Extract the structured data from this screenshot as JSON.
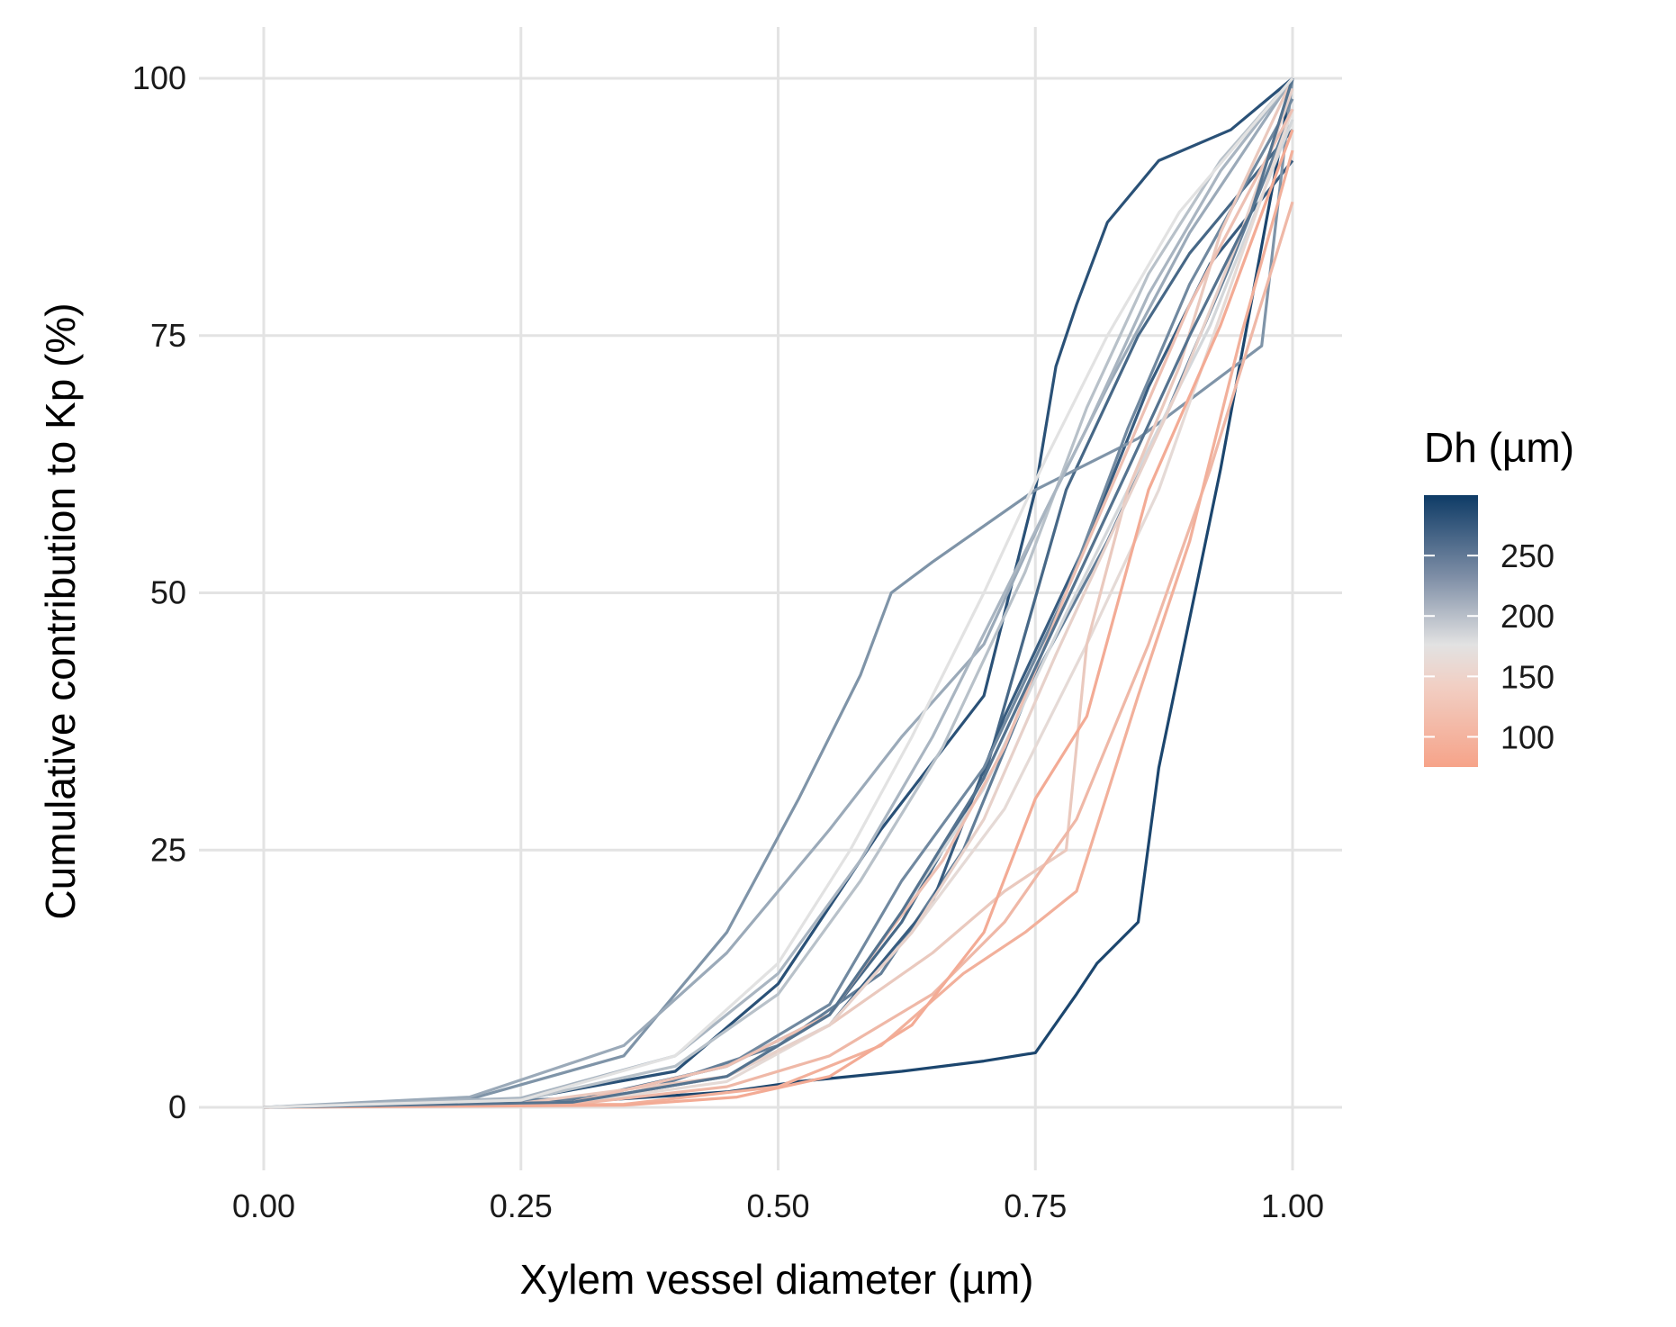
{
  "chart_data": {
    "type": "line",
    "xlabel": "Xylem vessel diameter (µm)",
    "ylabel": "Cumulative contribution to Kp (%)",
    "xlim": [
      0,
      1
    ],
    "ylim": [
      0,
      100
    ],
    "x_ticks": [
      0,
      0.25,
      0.5,
      0.75,
      1
    ],
    "x_tick_labels": [
      "0.00",
      "0.25",
      "0.50",
      "0.75",
      "1.00"
    ],
    "y_ticks": [
      0,
      25,
      50,
      75,
      100
    ],
    "y_tick_labels": [
      "0",
      "25",
      "50",
      "75",
      "100"
    ],
    "grid": true,
    "legend": {
      "title": "Dh (µm)",
      "placement": "right",
      "type": "colorbar",
      "range": [
        75,
        300
      ],
      "ticks": [
        100,
        150,
        200,
        250
      ],
      "tick_labels": [
        "100",
        "150",
        "200",
        "250"
      ],
      "colors": {
        "low": "#f6a389",
        "mid": "#e2e2e2",
        "high": "#0e3b66"
      }
    },
    "series": [
      {
        "dh": 290,
        "x": [
          0,
          0.3,
          0.45,
          0.52,
          0.62,
          0.7,
          0.75,
          0.79,
          0.81,
          0.85,
          0.87,
          0.93,
          1.0
        ],
        "y": [
          0,
          0.5,
          1.5,
          2.5,
          3.5,
          4.5,
          5.3,
          11,
          14,
          18,
          33,
          62,
          100
        ]
      },
      {
        "dh": 280,
        "x": [
          0,
          0.25,
          0.4,
          0.5,
          0.6,
          0.7,
          0.75,
          0.77,
          0.79,
          0.82,
          0.87,
          0.94,
          1.0
        ],
        "y": [
          0,
          0.8,
          3.5,
          12,
          27,
          40,
          60,
          72,
          78,
          86,
          92,
          95,
          100
        ]
      },
      {
        "dh": 260,
        "x": [
          0,
          0.3,
          0.45,
          0.55,
          0.62,
          0.7,
          0.78,
          0.85,
          0.9,
          1.0
        ],
        "y": [
          0,
          0.6,
          4,
          9,
          18,
          32,
          60,
          75,
          83,
          95
        ]
      },
      {
        "dh": 240,
        "x": [
          0,
          0.35,
          0.5,
          0.6,
          0.68,
          0.75,
          0.82,
          0.88,
          0.94,
          1.0
        ],
        "y": [
          0,
          1,
          6,
          13,
          25,
          42,
          55,
          68,
          82,
          97
        ]
      },
      {
        "dh": 270,
        "x": [
          0,
          0.3,
          0.45,
          0.55,
          0.65,
          0.72,
          0.8,
          0.86,
          0.92,
          1.0
        ],
        "y": [
          0,
          0.5,
          3,
          8,
          20,
          38,
          55,
          70,
          82,
          92
        ]
      },
      {
        "dh": 220,
        "x": [
          0,
          0.2,
          0.35,
          0.45,
          0.52,
          0.58,
          0.61,
          0.65,
          0.75,
          0.85,
          0.97,
          1.0
        ],
        "y": [
          0,
          0.8,
          5,
          17,
          30,
          42,
          50,
          53,
          60,
          65,
          74,
          100
        ]
      },
      {
        "dh": 200,
        "x": [
          0,
          0.2,
          0.35,
          0.45,
          0.55,
          0.62,
          0.7,
          0.76,
          0.82,
          0.9,
          1.0
        ],
        "y": [
          0,
          1,
          6,
          15,
          27,
          36,
          45,
          58,
          70,
          85,
          100
        ]
      },
      {
        "dh": 230,
        "x": [
          0,
          0.3,
          0.45,
          0.55,
          0.62,
          0.7,
          0.78,
          0.84,
          0.9,
          1.0
        ],
        "y": [
          0,
          0.5,
          4,
          10,
          22,
          33,
          50,
          66,
          80,
          98
        ]
      },
      {
        "dh": 180,
        "x": [
          0,
          0.25,
          0.4,
          0.5,
          0.58,
          0.66,
          0.74,
          0.8,
          0.86,
          0.93,
          1.0
        ],
        "y": [
          0,
          0.7,
          4,
          11,
          22,
          35,
          52,
          68,
          81,
          92,
          100
        ]
      },
      {
        "dh": 160,
        "x": [
          0,
          0.3,
          0.45,
          0.55,
          0.62,
          0.7,
          0.78,
          0.85,
          0.92,
          1.0
        ],
        "y": [
          0,
          0.5,
          3,
          9,
          19,
          31,
          48,
          62,
          76,
          96
        ]
      },
      {
        "dh": 140,
        "x": [
          0,
          0.3,
          0.45,
          0.55,
          0.63,
          0.72,
          0.8,
          0.87,
          0.93,
          1.0
        ],
        "y": [
          0,
          0.4,
          2.5,
          8,
          17,
          29,
          45,
          60,
          77,
          97
        ]
      },
      {
        "dh": 120,
        "x": [
          0,
          0.25,
          0.45,
          0.55,
          0.65,
          0.72,
          0.78,
          0.8,
          0.84,
          0.89,
          0.93,
          1.0
        ],
        "y": [
          0,
          0.4,
          3,
          8,
          15,
          21,
          25,
          45,
          60,
          72,
          85,
          100
        ]
      },
      {
        "dh": 100,
        "x": [
          0,
          0.3,
          0.45,
          0.55,
          0.65,
          0.72,
          0.79,
          0.86,
          0.92,
          1.0
        ],
        "y": [
          0,
          0.3,
          2,
          5,
          11,
          18,
          28,
          45,
          62,
          88
        ]
      },
      {
        "dh": 90,
        "x": [
          0,
          0.35,
          0.5,
          0.6,
          0.68,
          0.74,
          0.79,
          0.85,
          0.9,
          0.95,
          1.0
        ],
        "y": [
          0,
          0.3,
          2,
          6,
          13,
          17,
          21,
          40,
          55,
          75,
          93
        ]
      },
      {
        "dh": 110,
        "x": [
          0,
          0.3,
          0.45,
          0.55,
          0.6,
          0.66,
          0.72,
          0.78,
          0.84,
          0.9,
          1.0
        ],
        "y": [
          0,
          0.5,
          4,
          9,
          16,
          24,
          35,
          50,
          64,
          78,
          97
        ]
      },
      {
        "dh": 85,
        "x": [
          0,
          0.35,
          0.46,
          0.55,
          0.63,
          0.7,
          0.75,
          0.8,
          0.86,
          0.93,
          1.0
        ],
        "y": [
          0,
          0.2,
          1,
          3,
          8,
          17,
          30,
          38,
          60,
          76,
          95
        ]
      },
      {
        "dh": 130,
        "x": [
          0,
          0.3,
          0.45,
          0.55,
          0.63,
          0.7,
          0.77,
          0.83,
          0.89,
          0.95,
          1.0
        ],
        "y": [
          0,
          0.5,
          3,
          8,
          17,
          28,
          44,
          57,
          70,
          85,
          99
        ]
      },
      {
        "dh": 190,
        "x": [
          0,
          0.25,
          0.4,
          0.5,
          0.58,
          0.65,
          0.73,
          0.8,
          0.86,
          0.93,
          1.0
        ],
        "y": [
          0,
          0.9,
          5,
          13,
          24,
          36,
          52,
          66,
          79,
          91,
          100
        ]
      },
      {
        "dh": 250,
        "x": [
          0,
          0.3,
          0.45,
          0.55,
          0.62,
          0.7,
          0.77,
          0.84,
          0.9,
          0.96,
          1.0
        ],
        "y": [
          0,
          0.5,
          3,
          9,
          19,
          32,
          47,
          62,
          75,
          87,
          100
        ]
      },
      {
        "dh": 150,
        "x": [
          0,
          0.25,
          0.4,
          0.5,
          0.57,
          0.63,
          0.7,
          0.76,
          0.82,
          0.89,
          1.0
        ],
        "y": [
          0,
          0.7,
          5,
          14,
          25,
          36,
          50,
          63,
          75,
          87,
          100
        ]
      }
    ]
  }
}
